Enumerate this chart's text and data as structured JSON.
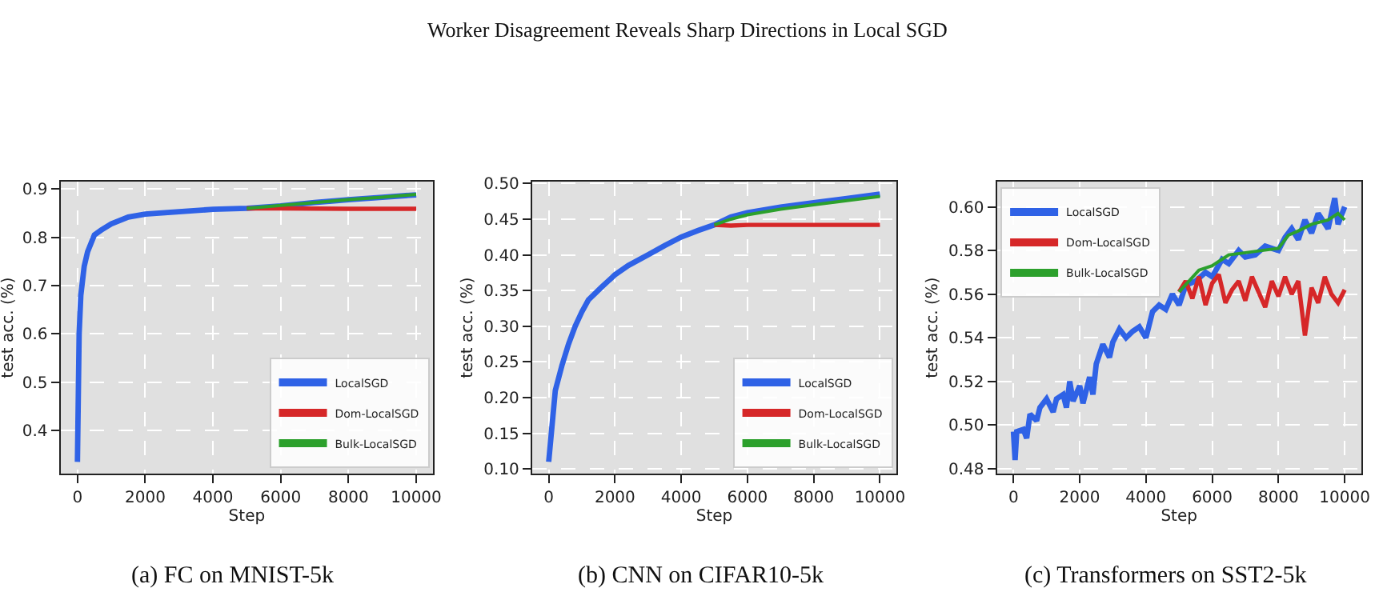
{
  "chart_data": [
    {
      "type": "line",
      "xlabel": "Step",
      "ylabel": "test acc. (%)",
      "annotations": [
        "(a) FC on MNIST-5k",
        "Worker Disagreement Reveals Sharp Directions in Local SGD"
      ],
      "xlim": [
        -500,
        10500
      ],
      "ylim": [
        0.31,
        0.916
      ],
      "xticks": [
        0,
        2000,
        4000,
        6000,
        8000,
        10000
      ],
      "yticks": [
        0.4,
        0.5,
        0.6,
        0.7,
        0.8,
        0.9
      ],
      "grid": true,
      "legend": "bottom right",
      "marker": "none",
      "line_style": "solid",
      "series": [
        {
          "name": "LocalSGD",
          "color": "#2f62e6",
          "x": [
            0,
            50,
            100,
            200,
            300,
            500,
            700,
            1000,
            1500,
            2000,
            3000,
            4000,
            5000,
            6000,
            7000,
            8000,
            9000,
            10000
          ],
          "values": [
            0.335,
            0.6,
            0.68,
            0.74,
            0.77,
            0.805,
            0.815,
            0.828,
            0.842,
            0.848,
            0.853,
            0.858,
            0.86,
            0.865,
            0.872,
            0.878,
            0.883,
            0.888
          ]
        },
        {
          "name": "Dom-LocalSGD",
          "color": "#d62728",
          "x": [
            5000,
            6000,
            8000,
            10000
          ],
          "values": [
            0.86,
            0.86,
            0.859,
            0.859
          ]
        },
        {
          "name": "Bulk-LocalSGD",
          "color": "#2ca02c",
          "x": [
            5000,
            6000,
            7000,
            8000,
            9000,
            10000
          ],
          "values": [
            0.86,
            0.866,
            0.872,
            0.878,
            0.883,
            0.889
          ]
        }
      ]
    },
    {
      "type": "line",
      "xlabel": "Step",
      "ylabel": "test acc. (%)",
      "annotations": [
        "(b) CNN on CIFAR10-5k"
      ],
      "xlim": [
        -500,
        10500
      ],
      "ylim": [
        0.093,
        0.503
      ],
      "xticks": [
        0,
        2000,
        4000,
        6000,
        8000,
        10000
      ],
      "yticks": [
        {
          "value": 0.1,
          "label": "0.10"
        },
        {
          "value": 0.15,
          "label": "0.15"
        },
        {
          "value": 0.2,
          "label": "0.20"
        },
        {
          "value": 0.25,
          "label": "0.25"
        },
        {
          "value": 0.3,
          "label": "0.30"
        },
        {
          "value": 0.35,
          "label": "0.35"
        },
        {
          "value": 0.4,
          "label": "0.40"
        },
        {
          "value": 0.45,
          "label": "0.45"
        },
        {
          "value": 0.5,
          "label": "0.50"
        }
      ],
      "grid": true,
      "legend": "bottom right",
      "marker": "none",
      "line_style": "solid",
      "series": [
        {
          "name": "LocalSGD",
          "color": "#2f62e6",
          "x": [
            0,
            100,
            200,
            400,
            600,
            800,
            1000,
            1200,
            1600,
            2000,
            2400,
            3000,
            3500,
            4000,
            4500,
            5000,
            5500,
            6000,
            7000,
            8000,
            9000,
            10000
          ],
          "values": [
            0.11,
            0.16,
            0.21,
            0.245,
            0.275,
            0.3,
            0.32,
            0.337,
            0.355,
            0.372,
            0.385,
            0.4,
            0.413,
            0.425,
            0.434,
            0.442,
            0.453,
            0.459,
            0.467,
            0.473,
            0.479,
            0.485
          ]
        },
        {
          "name": "Dom-LocalSGD",
          "color": "#d62728",
          "x": [
            5000,
            5500,
            6000,
            7000,
            8000,
            9000,
            10000
          ],
          "values": [
            0.442,
            0.441,
            0.442,
            0.442,
            0.442,
            0.442,
            0.442
          ]
        },
        {
          "name": "Bulk-LocalSGD",
          "color": "#2ca02c",
          "x": [
            5000,
            5500,
            6000,
            7000,
            8000,
            9000,
            10000
          ],
          "values": [
            0.442,
            0.45,
            0.456,
            0.464,
            0.47,
            0.476,
            0.482
          ]
        }
      ]
    },
    {
      "type": "line",
      "xlabel": "Step",
      "ylabel": "test acc. (%)",
      "annotations": [
        "(c) Transformers on SST2-5k"
      ],
      "xlim": [
        -500,
        10500
      ],
      "ylim": [
        0.4776,
        0.6117
      ],
      "xticks": [
        0,
        2000,
        4000,
        6000,
        8000,
        10000
      ],
      "yticks": [
        {
          "value": 0.48,
          "label": "0.48"
        },
        {
          "value": 0.5,
          "label": "0.50"
        },
        {
          "value": 0.52,
          "label": "0.52"
        },
        {
          "value": 0.54,
          "label": "0.54"
        },
        {
          "value": 0.56,
          "label": "0.56"
        },
        {
          "value": 0.58,
          "label": "0.58"
        },
        {
          "value": 0.6,
          "label": "0.60"
        }
      ],
      "grid": true,
      "legend": "top left",
      "marker": "none",
      "line_style": "solid",
      "series": [
        {
          "name": "LocalSGD",
          "color": "#2f62e6",
          "x": [
            0,
            50,
            100,
            300,
            400,
            500,
            700,
            800,
            1000,
            1200,
            1300,
            1500,
            1600,
            1700,
            1800,
            2000,
            2100,
            2300,
            2400,
            2500,
            2700,
            2900,
            3000,
            3200,
            3400,
            3600,
            3800,
            4000,
            4200,
            4400,
            4600,
            4800,
            5000,
            5200,
            5500,
            5800,
            6000,
            6300,
            6500,
            6800,
            7000,
            7300,
            7600,
            8000,
            8200,
            8400,
            8600,
            8800,
            9000,
            9200,
            9500,
            9700,
            9800,
            10000
          ],
          "values": [
            0.497,
            0.484,
            0.497,
            0.498,
            0.494,
            0.505,
            0.502,
            0.508,
            0.512,
            0.506,
            0.512,
            0.514,
            0.508,
            0.52,
            0.511,
            0.518,
            0.51,
            0.522,
            0.514,
            0.528,
            0.537,
            0.531,
            0.538,
            0.544,
            0.54,
            0.543,
            0.545,
            0.54,
            0.552,
            0.555,
            0.553,
            0.56,
            0.555,
            0.564,
            0.566,
            0.57,
            0.568,
            0.576,
            0.574,
            0.58,
            0.577,
            0.578,
            0.582,
            0.58,
            0.586,
            0.59,
            0.585,
            0.594,
            0.588,
            0.597,
            0.59,
            0.604,
            0.592,
            0.6
          ]
        },
        {
          "name": "Dom-LocalSGD",
          "color": "#d62728",
          "x": [
            5000,
            5200,
            5400,
            5600,
            5800,
            6000,
            6200,
            6400,
            6600,
            6800,
            7000,
            7200,
            7400,
            7600,
            7800,
            8000,
            8200,
            8400,
            8600,
            8800,
            9000,
            9200,
            9400,
            9600,
            9800,
            10000
          ],
          "values": [
            0.561,
            0.566,
            0.558,
            0.568,
            0.555,
            0.565,
            0.569,
            0.556,
            0.562,
            0.566,
            0.557,
            0.568,
            0.561,
            0.554,
            0.566,
            0.559,
            0.568,
            0.56,
            0.566,
            0.541,
            0.563,
            0.556,
            0.568,
            0.56,
            0.556,
            0.562
          ]
        },
        {
          "name": "Bulk-LocalSGD",
          "color": "#2ca02c",
          "x": [
            5000,
            5300,
            5600,
            6000,
            6500,
            7000,
            7500,
            8000,
            8300,
            8600,
            9000,
            9500,
            9800,
            10000
          ],
          "values": [
            0.561,
            0.566,
            0.571,
            0.573,
            0.578,
            0.579,
            0.58,
            0.581,
            0.587,
            0.589,
            0.592,
            0.594,
            0.597,
            0.594
          ]
        }
      ]
    }
  ]
}
